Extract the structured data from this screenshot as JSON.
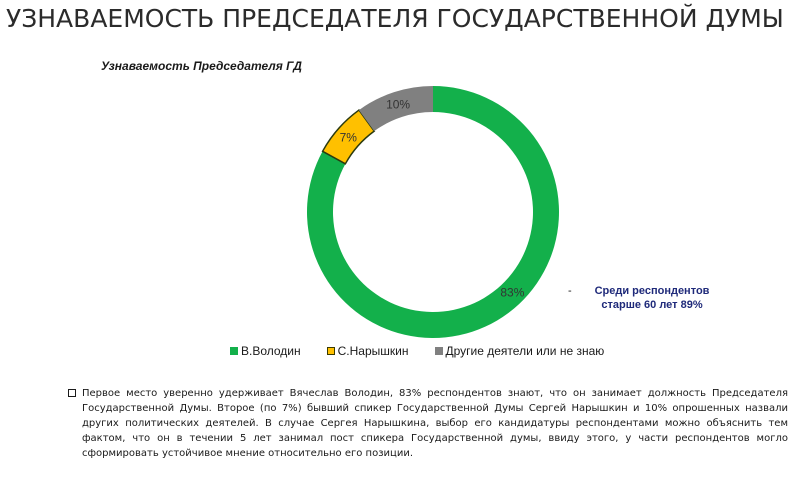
{
  "page": {
    "title": "УЗНАВАЕМОСТЬ ПРЕДСЕДАТЕЛЯ ГОСУДАРСТВЕННОЙ ДУМЫ"
  },
  "chart_data": {
    "type": "pie",
    "donut": true,
    "title": "Узнаваемость Председателя ГД",
    "categories": [
      "В.Володин",
      "С.Нарышкин",
      "Другие деятели или не знаю"
    ],
    "values": [
      83,
      7,
      10
    ],
    "labels": [
      "83%",
      "7%",
      "10%"
    ],
    "colors": [
      "#13b04b",
      "#ffc000",
      "#808080"
    ],
    "legend_position": "bottom"
  },
  "side_note": {
    "dash": "-",
    "text": "Среди респондентов старше 60 лет 89%"
  },
  "summary": {
    "text": "Первое место уверенно удерживает Вячеслав Володин, 83% респондентов знают, что он занимает должность Председателя Государственной Думы. Второе (по 7%)  бывший спикер Государственной Думы Сергей Нарышкин и 10% опрошенных назвали других политических деятелей. В случае Сергея Нарышкина, выбор его кандидатуры респондентами можно объяснить тем фактом, что он в течении 5 лет занимал пост спикера Государственной думы, ввиду этого, у части респондентов могло сформировать устойчивое мнение относительно его позиции."
  }
}
